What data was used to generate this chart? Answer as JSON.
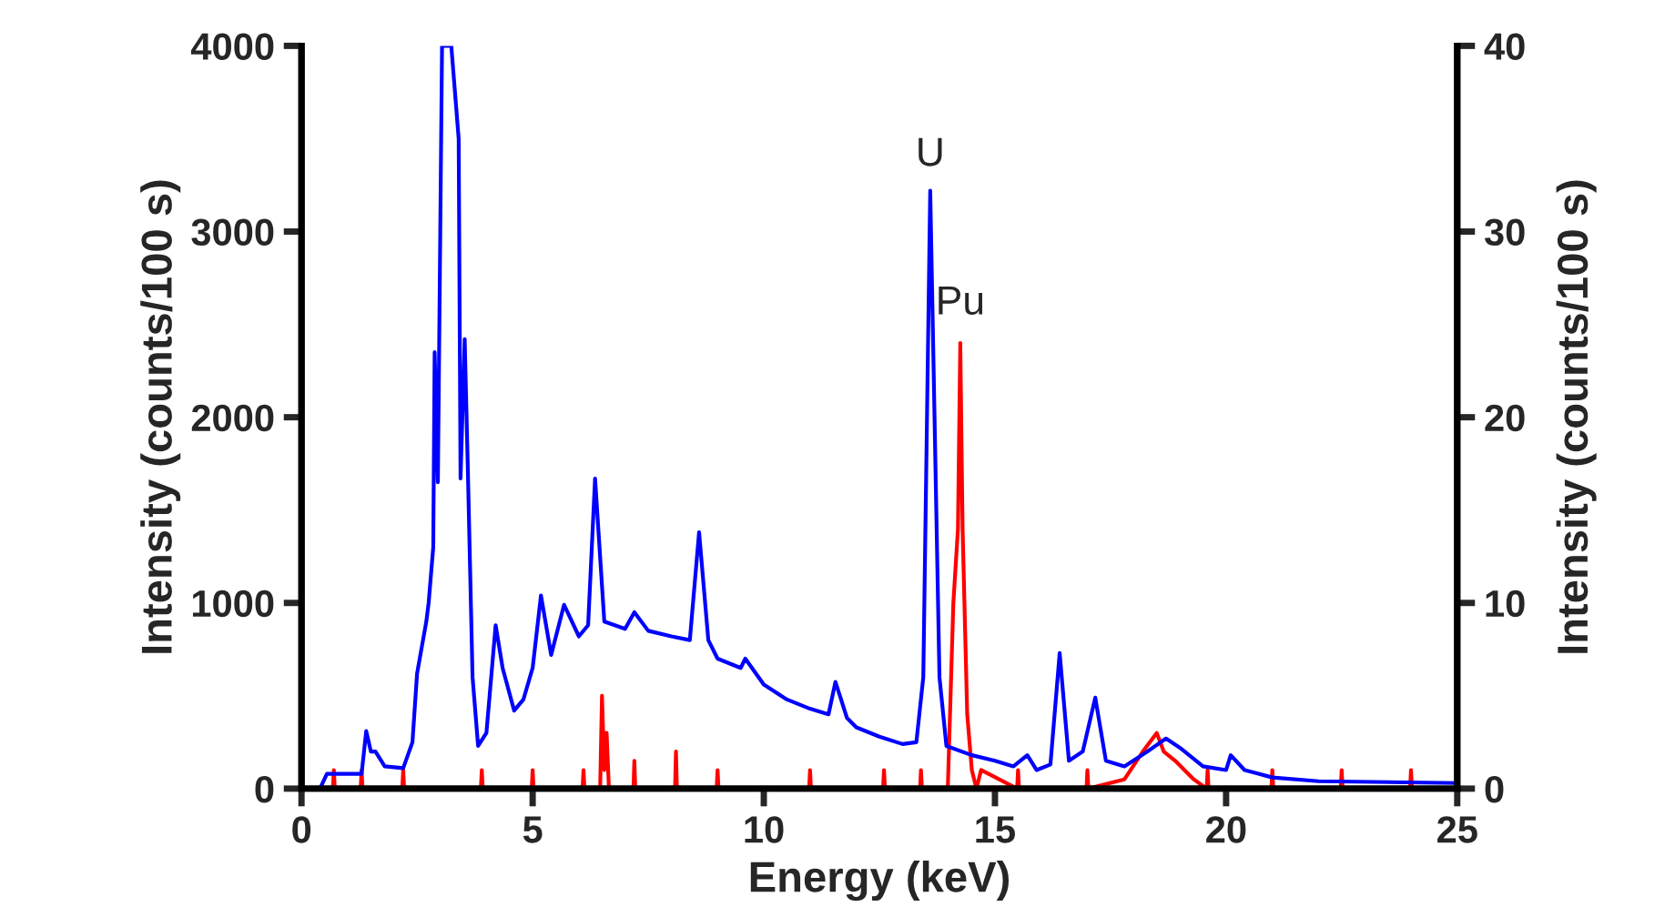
{
  "chart_data": {
    "type": "line",
    "xlabel": "Energy (keV)",
    "ylabel": "Intensity (counts/100 s)",
    "y2label": "Intensity (counts/100 s)",
    "xlim": [
      0,
      25
    ],
    "xticks": [
      0,
      5,
      10,
      15,
      20,
      25
    ],
    "ylim": [
      0,
      4000
    ],
    "yticks": [
      0,
      1000,
      2000,
      3000,
      4000
    ],
    "y2lim": [
      0,
      40
    ],
    "y2ticks": [
      0,
      10,
      20,
      30,
      40
    ],
    "grid": false,
    "legend": false,
    "annotations": [
      {
        "text": "U",
        "x": 13.6,
        "y": 3200
      },
      {
        "text": "Pu",
        "x": 14.25,
        "y": 2400
      }
    ],
    "series": [
      {
        "color": "#0000ff",
        "x": [
          0.4,
          0.55,
          1.3,
          1.4,
          1.5,
          1.6,
          1.8,
          2.2,
          2.4,
          2.5,
          2.7,
          2.75,
          2.85,
          2.88,
          2.95,
          3.04,
          3.24,
          3.4,
          3.44,
          3.53,
          3.6,
          3.7,
          3.82,
          4.0,
          4.2,
          4.35,
          4.6,
          4.8,
          5.0,
          5.18,
          5.4,
          5.68,
          6.0,
          6.2,
          6.35,
          6.55,
          7.0,
          7.2,
          7.5,
          8.0,
          8.4,
          8.6,
          8.8,
          9.0,
          9.5,
          9.6,
          10.0,
          10.5,
          11.0,
          11.4,
          11.55,
          11.8,
          12.0,
          12.5,
          13.0,
          13.3,
          13.45,
          13.6,
          13.8,
          13.95,
          14.5,
          15.0,
          15.4,
          15.7,
          15.9,
          16.2,
          16.4,
          16.6,
          16.9,
          17.17,
          17.4,
          17.8,
          18.3,
          18.7,
          19.0,
          19.5,
          20.0,
          20.1,
          20.4,
          20.7,
          21.0,
          22.0,
          25.0
        ],
        "values": [
          0,
          80,
          80,
          310,
          200,
          200,
          120,
          110,
          250,
          620,
          900,
          1000,
          1300,
          2350,
          1650,
          4000,
          4000,
          3500,
          1670,
          2420,
          1700,
          600,
          230,
          300,
          880,
          650,
          420,
          480,
          650,
          1040,
          720,
          990,
          820,
          880,
          1670,
          900,
          860,
          950,
          850,
          820,
          800,
          1380,
          800,
          700,
          650,
          700,
          560,
          480,
          430,
          400,
          575,
          380,
          330,
          280,
          240,
          250,
          600,
          3220,
          600,
          230,
          180,
          150,
          120,
          180,
          100,
          130,
          730,
          150,
          200,
          490,
          150,
          120,
          200,
          270,
          220,
          120,
          100,
          180,
          100,
          80,
          60,
          40,
          30
        ]
      },
      {
        "color": "#ff0000",
        "axis": "y2",
        "x": [
          0.5,
          0.68,
          0.7,
          0.72,
          1.28,
          1.3,
          1.32,
          2.18,
          2.2,
          2.22,
          3.88,
          3.9,
          3.92,
          4.98,
          5.0,
          5.02,
          6.08,
          6.1,
          6.12,
          6.46,
          6.5,
          6.55,
          6.6,
          6.65,
          7.18,
          7.2,
          7.22,
          8.08,
          8.1,
          8.12,
          8.98,
          9.0,
          9.02,
          10.98,
          11.0,
          11.02,
          12.58,
          12.6,
          12.62,
          13.38,
          13.4,
          13.42,
          13.98,
          14.1,
          14.2,
          14.25,
          14.3,
          14.4,
          14.5,
          14.6,
          14.7,
          15.48,
          15.5,
          15.52,
          16.98,
          17.0,
          17.02,
          17.8,
          18.2,
          18.5,
          18.65,
          18.9,
          19.3,
          19.58,
          19.6,
          19.62,
          20.98,
          21.0,
          21.02,
          22.48,
          22.5,
          22.52,
          23.98,
          24.0,
          24.02,
          25.0
        ],
        "values": [
          0,
          0,
          1,
          0,
          0,
          1,
          0,
          0,
          1,
          0,
          0,
          1,
          0,
          0,
          1,
          0,
          0,
          1,
          0,
          0,
          5,
          1,
          3,
          0,
          0,
          1.5,
          0,
          0,
          2,
          0,
          0,
          1,
          0,
          0,
          1,
          0,
          0,
          1,
          0,
          0,
          1,
          0,
          0,
          10,
          14,
          24,
          14,
          4,
          1,
          0,
          1,
          0,
          1,
          0,
          0,
          1,
          0,
          0.5,
          2,
          3,
          2,
          1.5,
          0.5,
          0,
          1,
          0,
          0,
          1,
          0,
          0,
          1,
          0,
          0,
          1,
          0,
          0
        ]
      }
    ]
  }
}
